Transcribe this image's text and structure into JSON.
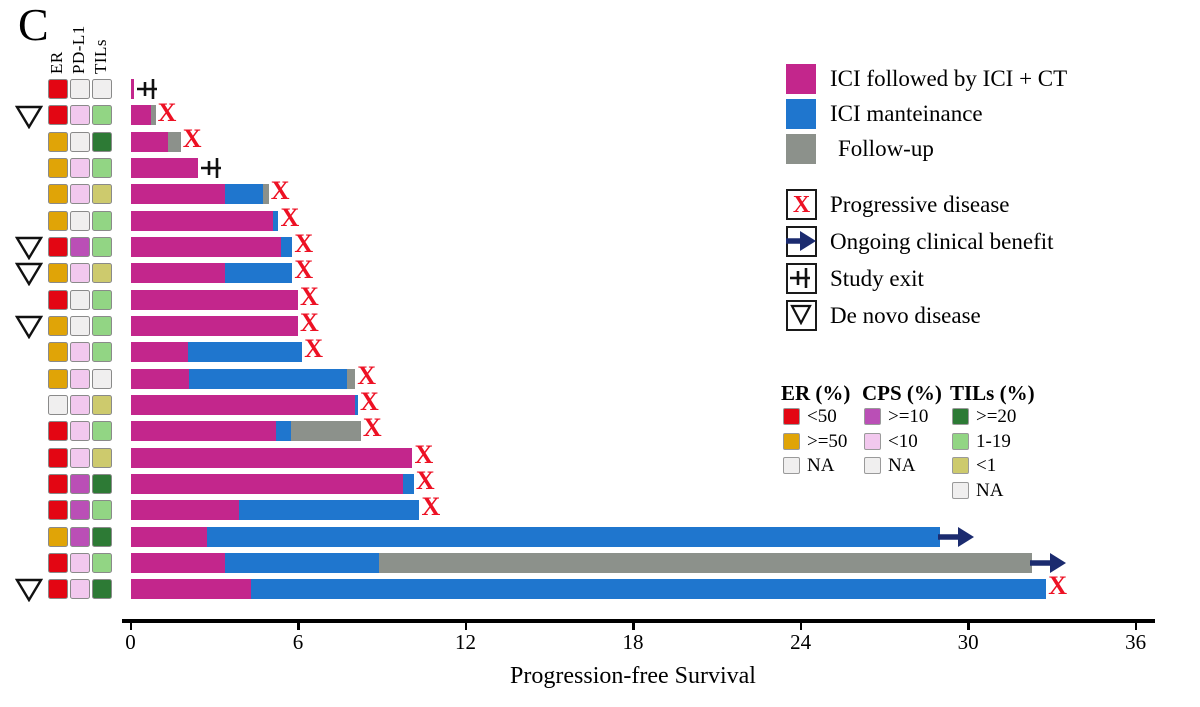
{
  "panel_label": "C",
  "chart_data": {
    "type": "swimmer",
    "xlabel": "Progression-free Survival",
    "x_ticks": [
      0,
      6,
      12,
      18,
      24,
      30,
      36
    ],
    "xlim": [
      0,
      36.6
    ],
    "grid": false,
    "biomarker_columns": [
      "ER",
      "PD-L1",
      "TILs"
    ],
    "colors": {
      "ici_ct": "#C3268C",
      "ici_maint": "#1F76CE",
      "followup": "#8C918B",
      "er_lt50": "#E30613",
      "er_ge50": "#E0A407",
      "cps_ge10": "#BA4FB6",
      "cps_lt10": "#F2C8EE",
      "tils_ge20": "#2D7A35",
      "tils_1_19": "#92D584",
      "tils_lt1": "#CDCA6D",
      "na": "#F0EFEF",
      "x_marker": "#ED1124",
      "arrow": "#1B2B6F"
    },
    "segments_legend": [
      {
        "key": "ici_ct",
        "label": "ICI followed by ICI + CT"
      },
      {
        "key": "ici_maint",
        "label": "ICI manteinance"
      },
      {
        "key": "followup",
        "label": "Follow-up"
      }
    ],
    "markers_legend": [
      {
        "key": "pd",
        "glyph": "X",
        "label": "Progressive disease"
      },
      {
        "key": "ongoing",
        "glyph": "arrow",
        "label": "Ongoing clinical benefit"
      },
      {
        "key": "exit",
        "glyph": "study-exit",
        "label": "Study exit"
      },
      {
        "key": "denovo",
        "glyph": "triangle",
        "label": "De novo disease"
      }
    ],
    "biomarker_legend": [
      {
        "title": "ER (%)",
        "items": [
          {
            "label": "<50",
            "key": "er_lt50"
          },
          {
            "label": ">=50",
            "key": "er_ge50"
          },
          {
            "label": "NA",
            "key": "na"
          }
        ]
      },
      {
        "title": "CPS (%)",
        "items": [
          {
            "label": ">=10",
            "key": "cps_ge10"
          },
          {
            "label": "<10",
            "key": "cps_lt10"
          },
          {
            "label": "NA",
            "key": "na"
          }
        ]
      },
      {
        "title": "TILs (%)",
        "items": [
          {
            "label": ">=20",
            "key": "tils_ge20"
          },
          {
            "label": "1-19",
            "key": "tils_1_19"
          },
          {
            "label": "<1",
            "key": "tils_lt1"
          },
          {
            "label": "NA",
            "key": "na"
          }
        ]
      }
    ],
    "patients": [
      {
        "de_novo": false,
        "er": "er_lt50",
        "cps": "na",
        "tils": "na",
        "pfs": 0.12,
        "segments": [
          {
            "type": "ici_ct",
            "months": 0.12
          }
        ],
        "end": "exit"
      },
      {
        "de_novo": true,
        "er": "er_lt50",
        "cps": "cps_lt10",
        "tils": "tils_1_19",
        "pfs": 0.9,
        "segments": [
          {
            "type": "ici_ct",
            "months": 0.75
          },
          {
            "type": "followup",
            "months": 0.15
          }
        ],
        "end": "pd"
      },
      {
        "de_novo": false,
        "er": "er_ge50",
        "cps": "na",
        "tils": "tils_ge20",
        "pfs": 1.8,
        "segments": [
          {
            "type": "ici_ct",
            "months": 1.35
          },
          {
            "type": "followup",
            "months": 0.45
          }
        ],
        "end": "pd"
      },
      {
        "de_novo": false,
        "er": "er_ge50",
        "cps": "cps_lt10",
        "tils": "tils_1_19",
        "pfs": 2.4,
        "segments": [
          {
            "type": "ici_ct",
            "months": 2.4
          }
        ],
        "end": "exit"
      },
      {
        "de_novo": false,
        "er": "er_ge50",
        "cps": "cps_lt10",
        "tils": "tils_lt1",
        "pfs": 4.95,
        "segments": [
          {
            "type": "ici_ct",
            "months": 3.4
          },
          {
            "type": "ici_maint",
            "months": 1.35
          },
          {
            "type": "followup",
            "months": 0.2
          }
        ],
        "end": "pd"
      },
      {
        "de_novo": false,
        "er": "er_ge50",
        "cps": "na",
        "tils": "tils_1_19",
        "pfs": 5.3,
        "segments": [
          {
            "type": "ici_ct",
            "months": 5.1
          },
          {
            "type": "ici_maint",
            "months": 0.2
          }
        ],
        "end": "pd"
      },
      {
        "de_novo": true,
        "er": "er_lt50",
        "cps": "cps_ge10",
        "tils": "tils_1_19",
        "pfs": 5.8,
        "segments": [
          {
            "type": "ici_ct",
            "months": 5.4
          },
          {
            "type": "ici_maint",
            "months": 0.4
          }
        ],
        "end": "pd"
      },
      {
        "de_novo": true,
        "er": "er_ge50",
        "cps": "cps_lt10",
        "tils": "tils_lt1",
        "pfs": 5.8,
        "segments": [
          {
            "type": "ici_ct",
            "months": 3.4
          },
          {
            "type": "ici_maint",
            "months": 2.4
          }
        ],
        "end": "pd"
      },
      {
        "de_novo": false,
        "er": "er_lt50",
        "cps": "na",
        "tils": "tils_1_19",
        "pfs": 6.0,
        "segments": [
          {
            "type": "ici_ct",
            "months": 6.0
          }
        ],
        "end": "pd"
      },
      {
        "de_novo": true,
        "er": "er_ge50",
        "cps": "na",
        "tils": "tils_1_19",
        "pfs": 6.0,
        "segments": [
          {
            "type": "ici_ct",
            "months": 6.0
          }
        ],
        "end": "pd"
      },
      {
        "de_novo": false,
        "er": "er_ge50",
        "cps": "cps_lt10",
        "tils": "tils_1_19",
        "pfs": 6.15,
        "segments": [
          {
            "type": "ici_ct",
            "months": 2.05
          },
          {
            "type": "ici_maint",
            "months": 4.1
          }
        ],
        "end": "pd"
      },
      {
        "de_novo": false,
        "er": "er_ge50",
        "cps": "cps_lt10",
        "tils": "na",
        "pfs": 8.05,
        "segments": [
          {
            "type": "ici_ct",
            "months": 2.1
          },
          {
            "type": "ici_maint",
            "months": 5.65
          },
          {
            "type": "followup",
            "months": 0.3
          }
        ],
        "end": "pd"
      },
      {
        "de_novo": false,
        "er": "na",
        "cps": "cps_lt10",
        "tils": "tils_lt1",
        "pfs": 8.15,
        "segments": [
          {
            "type": "ici_ct",
            "months": 8.05
          },
          {
            "type": "ici_maint",
            "months": 0.1
          }
        ],
        "end": "pd"
      },
      {
        "de_novo": false,
        "er": "er_lt50",
        "cps": "cps_lt10",
        "tils": "tils_1_19",
        "pfs": 8.25,
        "segments": [
          {
            "type": "ici_ct",
            "months": 5.2
          },
          {
            "type": "ici_maint",
            "months": 0.55
          },
          {
            "type": "followup",
            "months": 2.5
          }
        ],
        "end": "pd"
      },
      {
        "de_novo": false,
        "er": "er_lt50",
        "cps": "cps_lt10",
        "tils": "tils_lt1",
        "pfs": 10.1,
        "segments": [
          {
            "type": "ici_ct",
            "months": 10.1
          }
        ],
        "end": "pd"
      },
      {
        "de_novo": false,
        "er": "er_lt50",
        "cps": "cps_ge10",
        "tils": "tils_ge20",
        "pfs": 10.15,
        "segments": [
          {
            "type": "ici_ct",
            "months": 9.75
          },
          {
            "type": "ici_maint",
            "months": 0.4
          }
        ],
        "end": "pd"
      },
      {
        "de_novo": false,
        "er": "er_lt50",
        "cps": "cps_ge10",
        "tils": "tils_1_19",
        "pfs": 10.35,
        "segments": [
          {
            "type": "ici_ct",
            "months": 3.9
          },
          {
            "type": "ici_maint",
            "months": 6.45
          }
        ],
        "end": "pd"
      },
      {
        "de_novo": false,
        "er": "er_ge50",
        "cps": "cps_ge10",
        "tils": "tils_ge20",
        "pfs": 29.0,
        "segments": [
          {
            "type": "ici_ct",
            "months": 2.75
          },
          {
            "type": "ici_maint",
            "months": 26.25
          }
        ],
        "end": "ongoing"
      },
      {
        "de_novo": false,
        "er": "er_lt50",
        "cps": "cps_lt10",
        "tils": "tils_1_19",
        "pfs": 32.3,
        "segments": [
          {
            "type": "ici_ct",
            "months": 3.4
          },
          {
            "type": "ici_maint",
            "months": 5.5
          },
          {
            "type": "followup",
            "months": 23.4
          }
        ],
        "end": "ongoing"
      },
      {
        "de_novo": true,
        "er": "er_lt50",
        "cps": "cps_lt10",
        "tils": "tils_ge20",
        "pfs": 32.8,
        "segments": [
          {
            "type": "ici_ct",
            "months": 4.3
          },
          {
            "type": "ici_maint",
            "months": 28.5
          }
        ],
        "end": "pd"
      }
    ]
  }
}
